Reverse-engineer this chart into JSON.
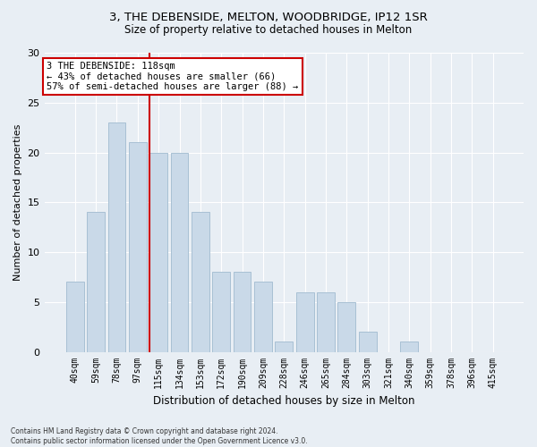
{
  "title1": "3, THE DEBENSIDE, MELTON, WOODBRIDGE, IP12 1SR",
  "title2": "Size of property relative to detached houses in Melton",
  "xlabel": "Distribution of detached houses by size in Melton",
  "ylabel": "Number of detached properties",
  "categories": [
    "40sqm",
    "59sqm",
    "78sqm",
    "97sqm",
    "115sqm",
    "134sqm",
    "153sqm",
    "172sqm",
    "190sqm",
    "209sqm",
    "228sqm",
    "246sqm",
    "265sqm",
    "284sqm",
    "303sqm",
    "321sqm",
    "340sqm",
    "359sqm",
    "378sqm",
    "396sqm",
    "415sqm"
  ],
  "values": [
    7,
    14,
    23,
    21,
    20,
    20,
    14,
    8,
    8,
    7,
    1,
    6,
    6,
    5,
    2,
    0,
    1,
    0,
    0,
    0,
    0
  ],
  "bar_color": "#c9d9e8",
  "bar_edge_color": "#a8c0d4",
  "vline_color": "#cc0000",
  "vline_x_index": 4,
  "annotation_line1": "3 THE DEBENSIDE: 118sqm",
  "annotation_line2": "← 43% of detached houses are smaller (66)",
  "annotation_line3": "57% of semi-detached houses are larger (88) →",
  "annotation_box_color": "#ffffff",
  "annotation_box_edge": "#cc0000",
  "ylim": [
    0,
    30
  ],
  "yticks": [
    0,
    5,
    10,
    15,
    20,
    25,
    30
  ],
  "footer1": "Contains HM Land Registry data © Crown copyright and database right 2024.",
  "footer2": "Contains public sector information licensed under the Open Government Licence v3.0.",
  "bg_color": "#e8eef4",
  "plot_bg_color": "#e8eef4",
  "grid_color": "#ffffff"
}
